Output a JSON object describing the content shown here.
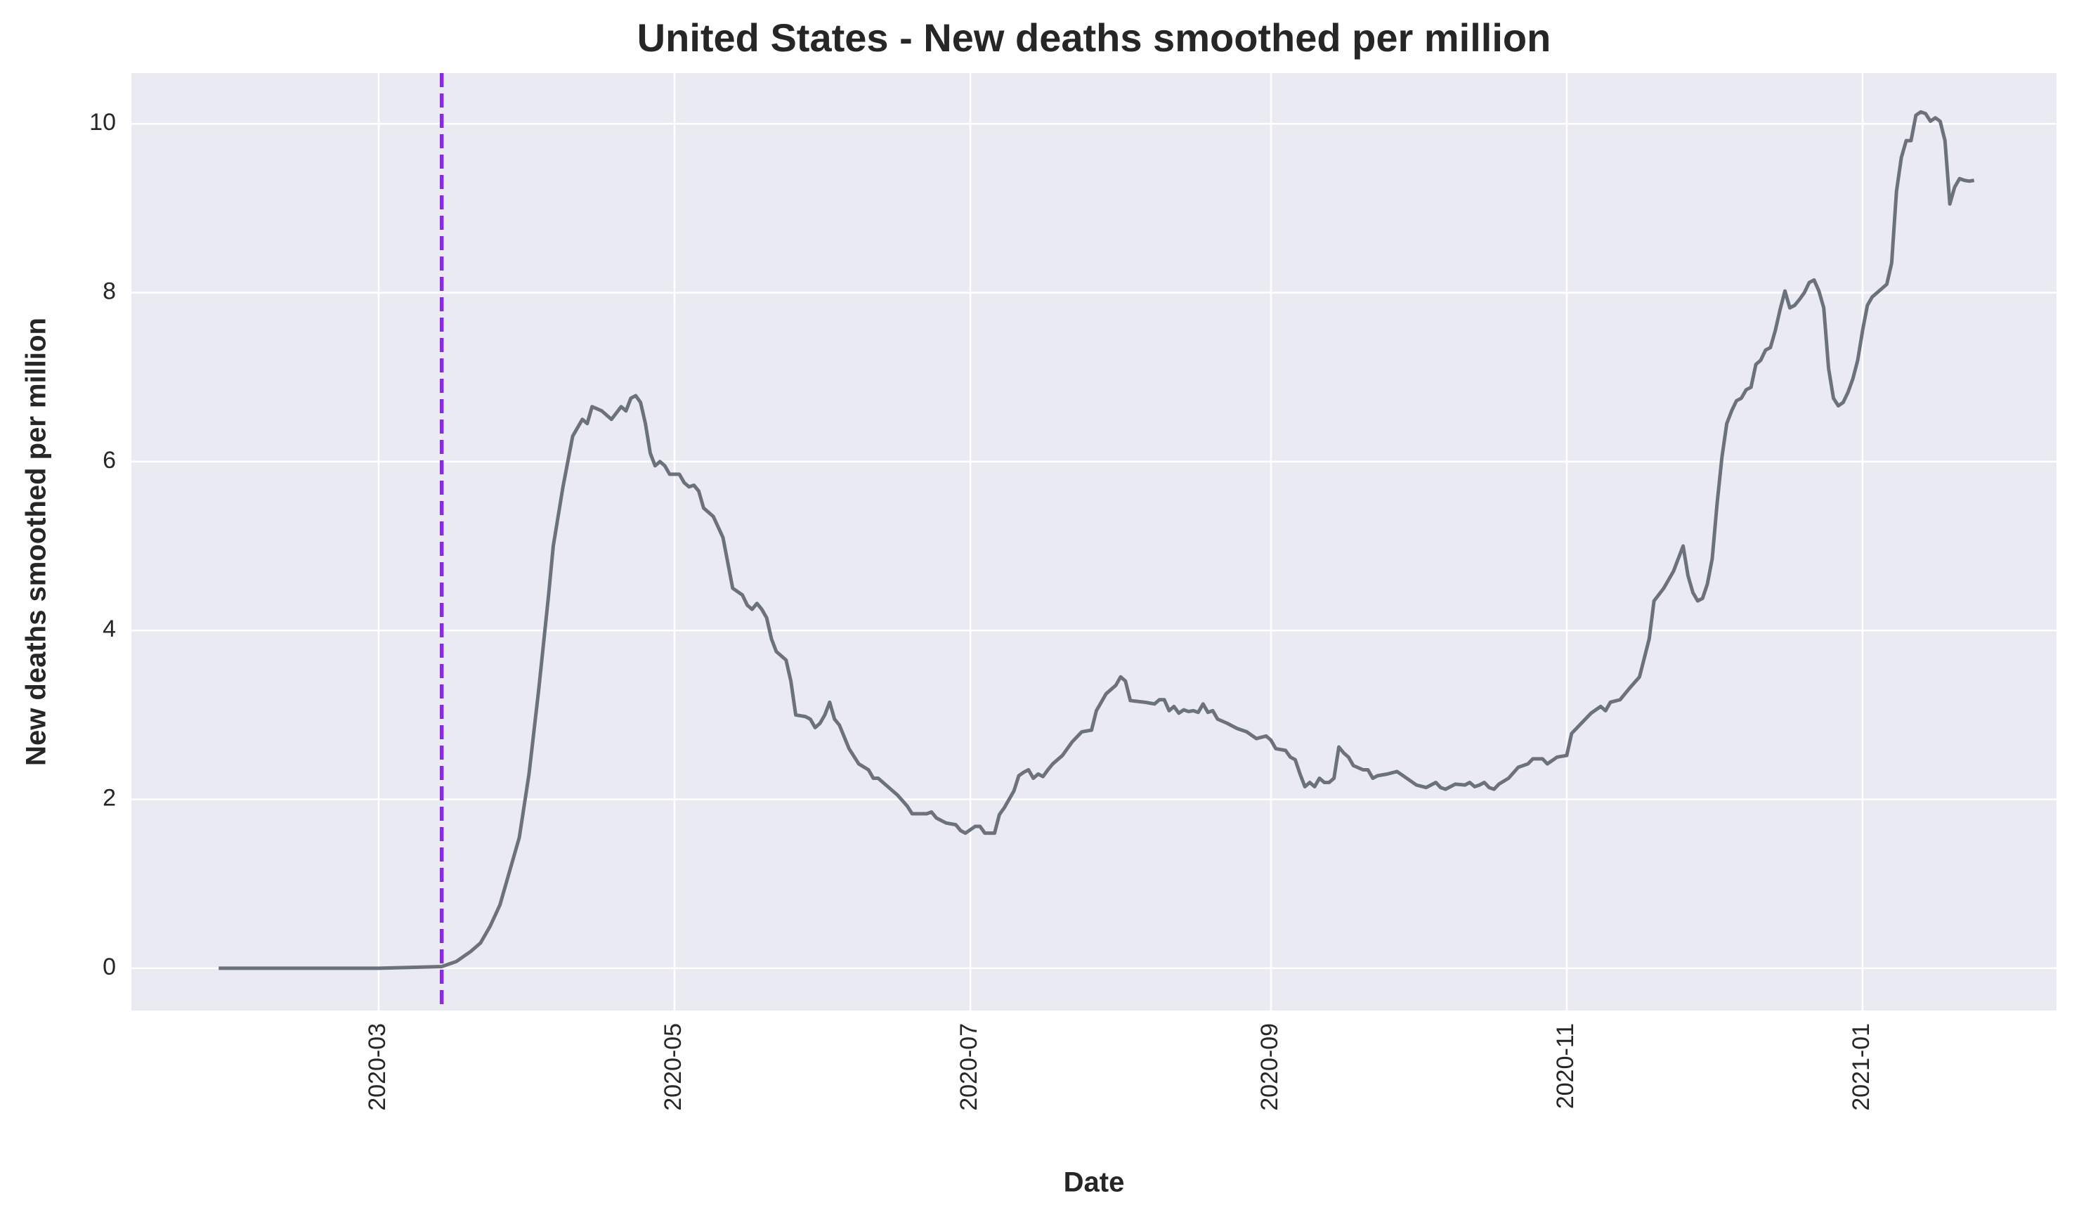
{
  "chart_data": {
    "type": "line",
    "title": "United States - New deaths smoothed per million",
    "xlabel": "Date",
    "ylabel": "New deaths smoothed per million",
    "color": "#6b727c",
    "grid": true,
    "vline": {
      "x": "2020-03-14",
      "color": "#8a2be2",
      "style": "dashed"
    },
    "xlim": [
      "2020-01-10",
      "2021-02-10"
    ],
    "xticks": [
      {
        "value": "2020-03-01",
        "label": "2020-03"
      },
      {
        "value": "2020-05-01",
        "label": "2020-05"
      },
      {
        "value": "2020-07-01",
        "label": "2020-07"
      },
      {
        "value": "2020-09-01",
        "label": "2020-09"
      },
      {
        "value": "2020-11-01",
        "label": "2020-11"
      },
      {
        "value": "2021-01-01",
        "label": "2021-01"
      }
    ],
    "ylim": [
      -0.5,
      10.6
    ],
    "yticks": [
      0,
      2,
      4,
      6,
      8,
      10
    ],
    "x": [
      "2020-01-28",
      "2020-03-01",
      "2020-03-14",
      "2020-03-17",
      "2020-03-20",
      "2020-03-22",
      "2020-03-24",
      "2020-03-26",
      "2020-03-28",
      "2020-03-30",
      "2020-04-01",
      "2020-04-03",
      "2020-04-05",
      "2020-04-06",
      "2020-04-08",
      "2020-04-10",
      "2020-04-12",
      "2020-04-13",
      "2020-04-14",
      "2020-04-16",
      "2020-04-18",
      "2020-04-20",
      "2020-04-21",
      "2020-04-22",
      "2020-04-23",
      "2020-04-24",
      "2020-04-25",
      "2020-04-26",
      "2020-04-27",
      "2020-04-28",
      "2020-04-29",
      "2020-04-30",
      "2020-05-02",
      "2020-05-03",
      "2020-05-04",
      "2020-05-05",
      "2020-05-06",
      "2020-05-07",
      "2020-05-09",
      "2020-05-11",
      "2020-05-12",
      "2020-05-13",
      "2020-05-15",
      "2020-05-16",
      "2020-05-17",
      "2020-05-18",
      "2020-05-19",
      "2020-05-20",
      "2020-05-21",
      "2020-05-22",
      "2020-05-24",
      "2020-05-25",
      "2020-05-26",
      "2020-05-28",
      "2020-05-29",
      "2020-05-30",
      "2020-05-31",
      "2020-06-01",
      "2020-06-02",
      "2020-06-03",
      "2020-06-04",
      "2020-06-06",
      "2020-06-08",
      "2020-06-10",
      "2020-06-11",
      "2020-06-12",
      "2020-06-14",
      "2020-06-16",
      "2020-06-18",
      "2020-06-19",
      "2020-06-22",
      "2020-06-23",
      "2020-06-24",
      "2020-06-26",
      "2020-06-28",
      "2020-06-29",
      "2020-06-30",
      "2020-07-02",
      "2020-07-03",
      "2020-07-04",
      "2020-07-06",
      "2020-07-07",
      "2020-07-08",
      "2020-07-09",
      "2020-07-10",
      "2020-07-11",
      "2020-07-12",
      "2020-07-13",
      "2020-07-14",
      "2020-07-15",
      "2020-07-16",
      "2020-07-17",
      "2020-07-18",
      "2020-07-20",
      "2020-07-22",
      "2020-07-24",
      "2020-07-26",
      "2020-07-27",
      "2020-07-29",
      "2020-07-31",
      "2020-08-01",
      "2020-08-02",
      "2020-08-03",
      "2020-08-06",
      "2020-08-08",
      "2020-08-09",
      "2020-08-10",
      "2020-08-11",
      "2020-08-12",
      "2020-08-13",
      "2020-08-14",
      "2020-08-15",
      "2020-08-16",
      "2020-08-17",
      "2020-08-18",
      "2020-08-19",
      "2020-08-20",
      "2020-08-21",
      "2020-08-23",
      "2020-08-25",
      "2020-08-27",
      "2020-08-29",
      "2020-08-31",
      "2020-09-01",
      "2020-09-02",
      "2020-09-04",
      "2020-09-05",
      "2020-09-06",
      "2020-09-07",
      "2020-09-08",
      "2020-09-09",
      "2020-09-10",
      "2020-09-11",
      "2020-09-12",
      "2020-09-13",
      "2020-09-14",
      "2020-09-15",
      "2020-09-16",
      "2020-09-17",
      "2020-09-18",
      "2020-09-20",
      "2020-09-21",
      "2020-09-22",
      "2020-09-23",
      "2020-09-25",
      "2020-09-27",
      "2020-09-29",
      "2020-10-01",
      "2020-10-03",
      "2020-10-04",
      "2020-10-05",
      "2020-10-06",
      "2020-10-07",
      "2020-10-09",
      "2020-10-11",
      "2020-10-12",
      "2020-10-13",
      "2020-10-14",
      "2020-10-15",
      "2020-10-16",
      "2020-10-17",
      "2020-10-18",
      "2020-10-20",
      "2020-10-22",
      "2020-10-24",
      "2020-10-25",
      "2020-10-27",
      "2020-10-28",
      "2020-10-30",
      "2020-11-01",
      "2020-11-02",
      "2020-11-04",
      "2020-11-06",
      "2020-11-08",
      "2020-11-09",
      "2020-11-10",
      "2020-11-12",
      "2020-11-14",
      "2020-11-16",
      "2020-11-18",
      "2020-11-19",
      "2020-11-21",
      "2020-11-23",
      "2020-11-25",
      "2020-11-26",
      "2020-11-27",
      "2020-11-28",
      "2020-11-29",
      "2020-11-30",
      "2020-12-01",
      "2020-12-02",
      "2020-12-03",
      "2020-12-04",
      "2020-12-05",
      "2020-12-06",
      "2020-12-07",
      "2020-12-08",
      "2020-12-09",
      "2020-12-10",
      "2020-12-11",
      "2020-12-12",
      "2020-12-13",
      "2020-12-14",
      "2020-12-15",
      "2020-12-16",
      "2020-12-17",
      "2020-12-18",
      "2020-12-19",
      "2020-12-20",
      "2020-12-21",
      "2020-12-22",
      "2020-12-23",
      "2020-12-24",
      "2020-12-25",
      "2020-12-26",
      "2020-12-27",
      "2020-12-28",
      "2020-12-29",
      "2020-12-30",
      "2020-12-31",
      "2021-01-01",
      "2021-01-02",
      "2021-01-03",
      "2021-01-05",
      "2021-01-06",
      "2021-01-07",
      "2021-01-08",
      "2021-01-09",
      "2021-01-10",
      "2021-01-11",
      "2021-01-12",
      "2021-01-13",
      "2021-01-14",
      "2021-01-15",
      "2021-01-16",
      "2021-01-17",
      "2021-01-18",
      "2021-01-19",
      "2021-01-20",
      "2021-01-21",
      "2021-01-22",
      "2021-01-23",
      "2021-01-24"
    ],
    "values": [
      0,
      0,
      0.02,
      0.08,
      0.2,
      0.3,
      0.5,
      0.75,
      1.15,
      1.55,
      2.3,
      3.3,
      4.4,
      5.0,
      5.7,
      6.3,
      6.5,
      6.45,
      6.65,
      6.6,
      6.5,
      6.65,
      6.6,
      6.75,
      6.78,
      6.7,
      6.45,
      6.1,
      5.95,
      6.0,
      5.95,
      5.85,
      5.85,
      5.75,
      5.7,
      5.72,
      5.65,
      5.45,
      5.35,
      5.1,
      4.8,
      4.5,
      4.42,
      4.3,
      4.25,
      4.32,
      4.25,
      4.15,
      3.9,
      3.75,
      3.65,
      3.4,
      3.0,
      2.98,
      2.95,
      2.85,
      2.9,
      3.0,
      3.15,
      2.95,
      2.88,
      2.6,
      2.42,
      2.35,
      2.25,
      2.25,
      2.15,
      2.05,
      1.92,
      1.83,
      1.83,
      1.85,
      1.78,
      1.72,
      1.7,
      1.63,
      1.6,
      1.68,
      1.68,
      1.6,
      1.6,
      1.82,
      1.9,
      2.0,
      2.1,
      2.28,
      2.32,
      2.35,
      2.25,
      2.3,
      2.27,
      2.35,
      2.42,
      2.52,
      2.68,
      2.8,
      2.82,
      3.05,
      3.25,
      3.35,
      3.45,
      3.4,
      3.17,
      3.15,
      3.13,
      3.18,
      3.18,
      3.05,
      3.1,
      3.02,
      3.06,
      3.04,
      3.05,
      3.03,
      3.13,
      3.03,
      3.05,
      2.95,
      2.9,
      2.84,
      2.8,
      2.72,
      2.75,
      2.7,
      2.6,
      2.58,
      2.5,
      2.47,
      2.3,
      2.15,
      2.2,
      2.15,
      2.25,
      2.2,
      2.2,
      2.25,
      2.62,
      2.55,
      2.5,
      2.4,
      2.35,
      2.35,
      2.25,
      2.28,
      2.3,
      2.33,
      2.25,
      2.17,
      2.14,
      2.17,
      2.2,
      2.14,
      2.12,
      2.18,
      2.17,
      2.2,
      2.15,
      2.17,
      2.2,
      2.14,
      2.12,
      2.18,
      2.25,
      2.38,
      2.42,
      2.48,
      2.48,
      2.42,
      2.5,
      2.52,
      2.78,
      2.9,
      3.02,
      3.1,
      3.05,
      3.15,
      3.18,
      3.32,
      3.45,
      3.9,
      4.35,
      4.5,
      4.7,
      5.0,
      4.65,
      4.45,
      4.35,
      4.38,
      4.55,
      4.85,
      5.5,
      6.05,
      6.45,
      6.6,
      6.72,
      6.75,
      6.85,
      6.88,
      7.15,
      7.2,
      7.32,
      7.35,
      7.55,
      7.8,
      8.02,
      7.82,
      7.85,
      7.92,
      8.0,
      8.12,
      8.15,
      8.02,
      7.82,
      7.1,
      6.75,
      6.66,
      6.7,
      6.82,
      6.98,
      7.2,
      7.55,
      7.85,
      7.95,
      8.05,
      8.1,
      8.35,
      9.2,
      9.6,
      9.8,
      9.8,
      10.1,
      10.14,
      10.12,
      10.03,
      10.07,
      10.03,
      9.8,
      9.05,
      9.25,
      9.35,
      9.33,
      9.32,
      9.33
    ]
  }
}
